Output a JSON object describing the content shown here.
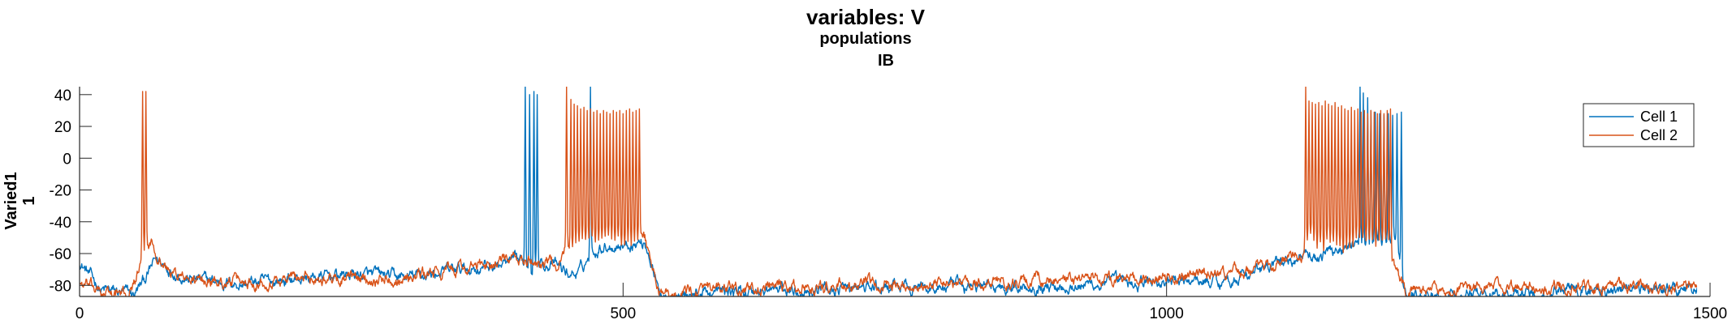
{
  "chart_data": {
    "type": "line",
    "title": "variables: V",
    "subtitle_line1": "populations",
    "subtitle_line2": "IB",
    "ylabel_line1": "Varied1",
    "ylabel_line2": "1",
    "xlabel": "",
    "xlim": [
      0,
      1500
    ],
    "ylim": [
      -87,
      45
    ],
    "xticks": [
      0,
      500,
      1000,
      1500
    ],
    "yticks": [
      40,
      20,
      0,
      -20,
      -40,
      -60,
      -80
    ],
    "grid": false,
    "legend_position": "top-right",
    "series": [
      {
        "name": "Cell 1",
        "color": "#0072BD",
        "noise": 2.5,
        "baseline": [
          [
            0,
            -65
          ],
          [
            20,
            -83
          ],
          [
            50,
            -86
          ],
          [
            62,
            -74
          ],
          [
            70,
            -64
          ],
          [
            100,
            -76
          ],
          [
            150,
            -79
          ],
          [
            200,
            -76
          ],
          [
            250,
            -73
          ],
          [
            300,
            -75
          ],
          [
            350,
            -70
          ],
          [
            400,
            -66
          ],
          [
            430,
            -66
          ],
          [
            440,
            -68
          ],
          [
            450,
            -73
          ],
          [
            460,
            -72
          ],
          [
            470,
            -60
          ],
          [
            480,
            -55
          ],
          [
            520,
            -53
          ],
          [
            525,
            -62
          ],
          [
            532,
            -83
          ],
          [
            540,
            -86
          ],
          [
            600,
            -84
          ],
          [
            700,
            -82
          ],
          [
            800,
            -81
          ],
          [
            900,
            -80
          ],
          [
            1000,
            -78
          ],
          [
            1050,
            -77
          ],
          [
            1080,
            -72
          ],
          [
            1100,
            -67
          ],
          [
            1120,
            -62
          ],
          [
            1140,
            -63
          ],
          [
            1150,
            -58
          ],
          [
            1170,
            -55
          ],
          [
            1210,
            -52
          ],
          [
            1215,
            -70
          ],
          [
            1222,
            -86
          ],
          [
            1300,
            -85
          ],
          [
            1400,
            -83
          ],
          [
            1480,
            -82
          ],
          [
            1500,
            -80
          ]
        ],
        "spikes": [
          [
            410,
            45
          ],
          [
            414,
            40
          ],
          [
            418,
            42
          ],
          [
            421,
            40
          ],
          [
            470,
            45
          ],
          [
            1178,
            45
          ],
          [
            1181,
            41
          ],
          [
            1185,
            38
          ],
          [
            1188,
            30
          ],
          [
            1192,
            29
          ],
          [
            1196,
            28
          ],
          [
            1200,
            27
          ],
          [
            1204,
            28
          ],
          [
            1208,
            27
          ],
          [
            1212,
            28
          ],
          [
            1216,
            29
          ]
        ],
        "spike_width": 1.1
      },
      {
        "name": "Cell 2",
        "color": "#D95319",
        "noise": 2.5,
        "baseline": [
          [
            0,
            -78
          ],
          [
            20,
            -85
          ],
          [
            45,
            -86
          ],
          [
            55,
            -70
          ],
          [
            60,
            -58
          ],
          [
            66,
            -53
          ],
          [
            80,
            -70
          ],
          [
            100,
            -77
          ],
          [
            150,
            -78
          ],
          [
            200,
            -75
          ],
          [
            250,
            -76
          ],
          [
            300,
            -75
          ],
          [
            350,
            -70
          ],
          [
            400,
            -64
          ],
          [
            430,
            -66
          ],
          [
            440,
            -66
          ],
          [
            448,
            -55
          ],
          [
            455,
            -52
          ],
          [
            520,
            -52
          ],
          [
            525,
            -65
          ],
          [
            532,
            -83
          ],
          [
            540,
            -86
          ],
          [
            600,
            -83
          ],
          [
            700,
            -81
          ],
          [
            800,
            -79
          ],
          [
            900,
            -77
          ],
          [
            1000,
            -76
          ],
          [
            1050,
            -73
          ],
          [
            1080,
            -70
          ],
          [
            1100,
            -68
          ],
          [
            1120,
            -60
          ],
          [
            1140,
            -53
          ],
          [
            1190,
            -52
          ],
          [
            1205,
            -52
          ],
          [
            1210,
            -70
          ],
          [
            1220,
            -84
          ],
          [
            1300,
            -83
          ],
          [
            1400,
            -81
          ],
          [
            1480,
            -80
          ],
          [
            1500,
            -78
          ]
        ],
        "spikes": [
          [
            58,
            42
          ],
          [
            61,
            42
          ],
          [
            448,
            45
          ],
          [
            452,
            37
          ],
          [
            455,
            34
          ],
          [
            458,
            33
          ],
          [
            461,
            31
          ],
          [
            464,
            32
          ],
          [
            467,
            30
          ],
          [
            470,
            31
          ],
          [
            473,
            29
          ],
          [
            476,
            30
          ],
          [
            479,
            28
          ],
          [
            482,
            30
          ],
          [
            485,
            29
          ],
          [
            488,
            28
          ],
          [
            491,
            30
          ],
          [
            494,
            29
          ],
          [
            497,
            30
          ],
          [
            500,
            28
          ],
          [
            503,
            30
          ],
          [
            506,
            31
          ],
          [
            509,
            29
          ],
          [
            512,
            30
          ],
          [
            515,
            31
          ],
          [
            1128,
            45
          ],
          [
            1131,
            36
          ],
          [
            1134,
            35
          ],
          [
            1137,
            34
          ],
          [
            1140,
            35
          ],
          [
            1143,
            33
          ],
          [
            1146,
            36
          ],
          [
            1149,
            34
          ],
          [
            1152,
            33
          ],
          [
            1155,
            35
          ],
          [
            1158,
            32
          ],
          [
            1161,
            33
          ],
          [
            1164,
            31
          ],
          [
            1167,
            30
          ],
          [
            1170,
            32
          ],
          [
            1173,
            30
          ],
          [
            1176,
            31
          ],
          [
            1179,
            29
          ],
          [
            1182,
            30
          ],
          [
            1185,
            28
          ],
          [
            1188,
            30
          ],
          [
            1191,
            29
          ],
          [
            1194,
            28
          ],
          [
            1197,
            30
          ],
          [
            1200,
            28
          ],
          [
            1203,
            30
          ],
          [
            1206,
            31
          ]
        ],
        "spike_width": 1.1
      }
    ]
  }
}
